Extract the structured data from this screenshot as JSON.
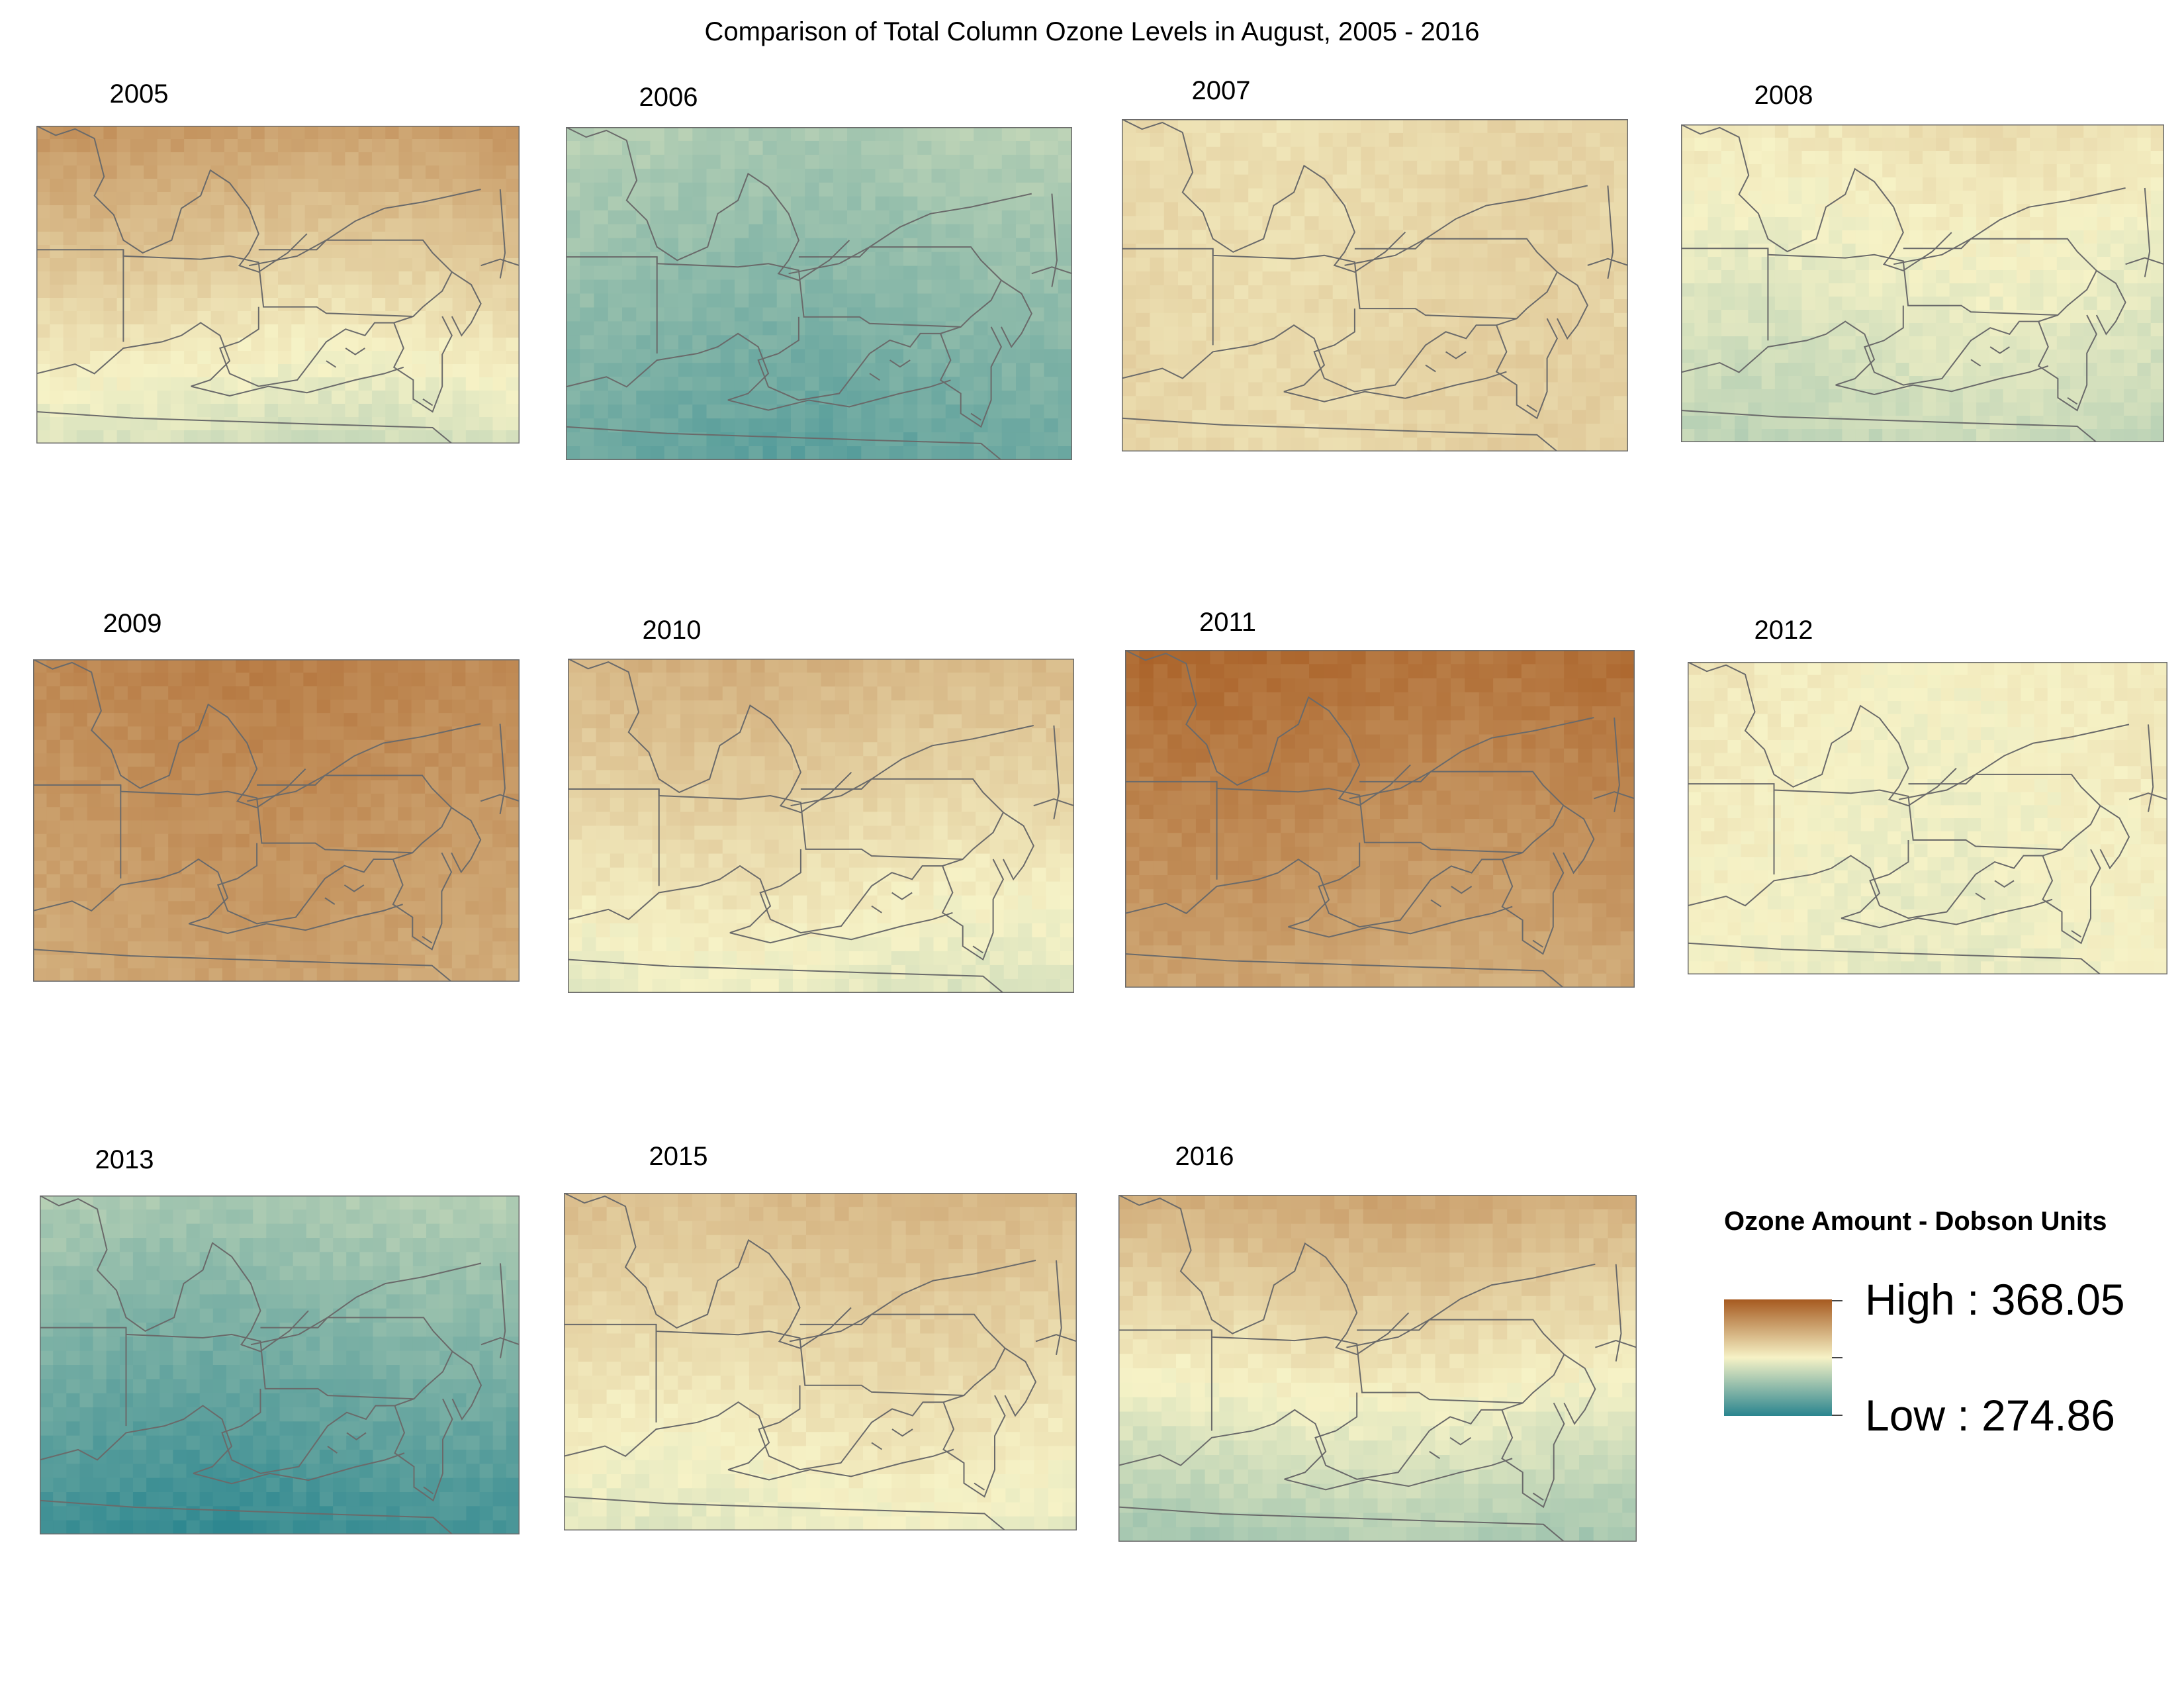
{
  "title": "Comparison of Total Column Ozone Levels in August, 2005 - 2016",
  "colors": {
    "high": "#a65a20",
    "mid": "#f6f2c6",
    "low": "#2a858f",
    "border": "#6a6a6a"
  },
  "panels": [
    {
      "year": "2005",
      "level_top": 0.78,
      "level_bottom": 0.42
    },
    {
      "year": "2006",
      "level_top": 0.33,
      "level_bottom": 0.15
    },
    {
      "year": "2007",
      "level_top": 0.58,
      "level_bottom": 0.6
    },
    {
      "year": "2008",
      "level_top": 0.55,
      "level_bottom": 0.38
    },
    {
      "year": "2009",
      "level_top": 0.86,
      "level_bottom": 0.75
    },
    {
      "year": "2010",
      "level_top": 0.7,
      "level_bottom": 0.46
    },
    {
      "year": "2011",
      "level_top": 0.93,
      "level_bottom": 0.74
    },
    {
      "year": "2012",
      "level_top": 0.52,
      "level_bottom": 0.48
    },
    {
      "year": "2013",
      "level_top": 0.32,
      "level_bottom": 0.05
    },
    {
      "year": "2015",
      "level_top": 0.68,
      "level_bottom": 0.47
    },
    {
      "year": "2016",
      "level_top": 0.73,
      "level_bottom": 0.32
    }
  ],
  "legend": {
    "title": "Ozone Amount - Dobson Units",
    "high_label": "High : 368.05",
    "low_label": "Low : 274.86"
  }
}
